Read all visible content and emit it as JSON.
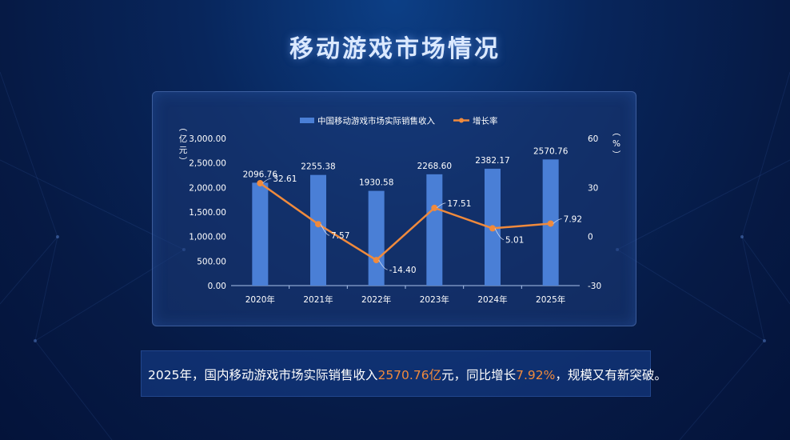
{
  "page": {
    "title": "移动游戏市场情况"
  },
  "chart_data": {
    "type": "bar",
    "categories": [
      "2020年",
      "2021年",
      "2022年",
      "2023年",
      "2024年",
      "2025年"
    ],
    "series": [
      {
        "name": "中国移动游戏市场实际销售收入",
        "type": "bar",
        "axis": "left",
        "values": [
          2096.76,
          2255.38,
          1930.58,
          2268.6,
          2382.17,
          2570.76
        ],
        "labels": [
          "2096.76",
          "2255.38",
          "1930.58",
          "2268.60",
          "2382.17",
          "2570.76"
        ],
        "color": "#4a7fd6"
      },
      {
        "name": "增长率",
        "type": "line",
        "axis": "right",
        "values": [
          32.61,
          7.57,
          -14.4,
          17.51,
          5.01,
          7.92
        ],
        "labels": [
          "32.61",
          "7.57",
          "-14.40",
          "17.51",
          "5.01",
          "7.92"
        ],
        "color": "#f08a3c"
      }
    ],
    "ylabel_left": "（亿元）",
    "ylabel_right": "（%）",
    "ylim_left": [
      0,
      3000
    ],
    "yticks_left": [
      "0.00",
      "500.00",
      "1,000.00",
      "1,500.00",
      "2,000.00",
      "2,500.00",
      "3,000.00"
    ],
    "ylim_right": [
      -30,
      60
    ],
    "yticks_right": [
      "-30",
      "0",
      "30",
      "60"
    ],
    "legend": "top-center",
    "grid": false
  },
  "caption": {
    "before": "2025年，国内移动游戏市场实际销售收入",
    "highlight1": "2570.76亿",
    "middle": "元，同比增长",
    "highlight2": "7.92%",
    "after": "，规模又有新突破。"
  },
  "colors": {
    "accent": "#f08a3c",
    "bar": "#4a7fd6",
    "background": "#061a45"
  }
}
